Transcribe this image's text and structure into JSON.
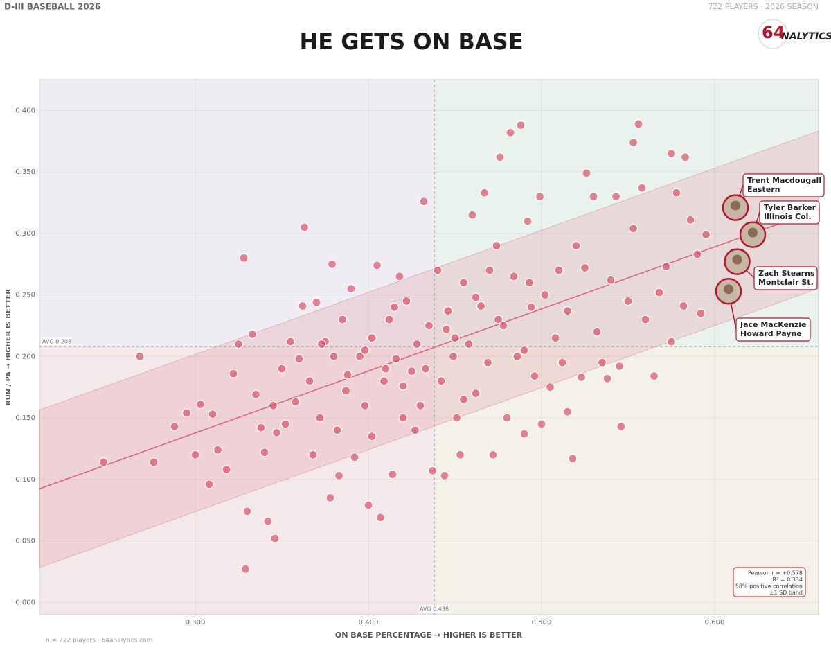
{
  "header": {
    "left": "D-III BASEBALL 2026",
    "right": "722 PLAYERS · 2026 SEASON",
    "logo_number": "64",
    "logo_text": "NALYTICS"
  },
  "chart_data": {
    "type": "scatter",
    "title": "HE GETS ON BASE",
    "x_label": "ON BASE PERCENTAGE  →  HIGHER IS BETTER",
    "y_label": "RUN / PA  →  HIGHER IS BETTER",
    "color": "#d8455e",
    "xlim": [
      0.21,
      0.66
    ],
    "ylim": [
      -0.01,
      0.425
    ],
    "xticks": [
      {
        "value": 0.3,
        "label": "0.300"
      },
      {
        "value": 0.4,
        "label": "0.400"
      },
      {
        "value": 0.5,
        "label": "0.500"
      },
      {
        "value": 0.6,
        "label": "0.600"
      }
    ],
    "yticks": [
      {
        "value": 0,
        "label": "0.000"
      },
      {
        "value": 0.05,
        "label": "0.050"
      },
      {
        "value": 0.1,
        "label": "0.100"
      },
      {
        "value": 0.15,
        "label": "0.150"
      },
      {
        "value": 0.2,
        "label": "0.200"
      },
      {
        "value": 0.25,
        "label": "0.250"
      },
      {
        "value": 0.3,
        "label": "0.300"
      },
      {
        "value": 0.35,
        "label": "0.350"
      },
      {
        "value": 0.4,
        "label": "0.400"
      }
    ],
    "grid": true,
    "avg_x": {
      "value": 0.438,
      "label": "AVG 0.438"
    },
    "avg_y": {
      "value": 0.208,
      "label": "AVG 0.208"
    },
    "x": [
      0.247,
      0.268,
      0.276,
      0.288,
      0.295,
      0.3,
      0.303,
      0.308,
      0.31,
      0.313,
      0.318,
      0.322,
      0.325,
      0.328,
      0.329,
      0.33,
      0.333,
      0.335,
      0.34,
      0.342,
      0.346,
      0.347,
      0.35,
      0.352,
      0.355,
      0.358,
      0.362,
      0.363,
      0.366,
      0.368,
      0.37,
      0.372,
      0.375,
      0.378,
      0.379,
      0.38,
      0.382,
      0.385,
      0.387,
      0.39,
      0.392,
      0.395,
      0.398,
      0.4,
      0.402,
      0.405,
      0.407,
      0.409,
      0.412,
      0.414,
      0.416,
      0.418,
      0.42,
      0.422,
      0.425,
      0.428,
      0.43,
      0.432,
      0.435,
      0.437,
      0.44,
      0.442,
      0.444,
      0.446,
      0.449,
      0.451,
      0.453,
      0.455,
      0.458,
      0.46,
      0.462,
      0.465,
      0.467,
      0.469,
      0.472,
      0.474,
      0.476,
      0.478,
      0.48,
      0.482,
      0.484,
      0.486,
      0.488,
      0.49,
      0.492,
      0.494,
      0.496,
      0.499,
      0.5,
      0.502,
      0.505,
      0.508,
      0.51,
      0.512,
      0.515,
      0.518,
      0.52,
      0.523,
      0.526,
      0.53,
      0.532,
      0.535,
      0.538,
      0.54,
      0.543,
      0.546,
      0.55,
      0.553,
      0.556,
      0.558,
      0.56,
      0.565,
      0.568,
      0.572,
      0.575,
      0.578,
      0.582,
      0.583,
      0.586,
      0.59,
      0.592,
      0.595,
      0.575,
      0.553,
      0.545,
      0.525,
      0.47,
      0.445,
      0.415,
      0.398,
      0.388,
      0.373,
      0.36,
      0.345,
      0.338,
      0.383,
      0.402,
      0.427,
      0.455,
      0.462,
      0.433,
      0.41,
      0.42,
      0.45,
      0.475,
      0.493,
      0.515,
      0.49
    ],
    "values": [
      0.114,
      0.2,
      0.114,
      0.143,
      0.154,
      0.12,
      0.161,
      0.096,
      0.153,
      0.124,
      0.108,
      0.186,
      0.21,
      0.28,
      0.027,
      0.074,
      0.218,
      0.169,
      0.122,
      0.066,
      0.052,
      0.138,
      0.19,
      0.145,
      0.212,
      0.163,
      0.241,
      0.305,
      0.18,
      0.12,
      0.244,
      0.15,
      0.212,
      0.085,
      0.275,
      0.2,
      0.14,
      0.23,
      0.172,
      0.255,
      0.118,
      0.2,
      0.16,
      0.079,
      0.215,
      0.274,
      0.069,
      0.18,
      0.23,
      0.104,
      0.198,
      0.265,
      0.15,
      0.245,
      0.188,
      0.21,
      0.16,
      0.326,
      0.225,
      0.107,
      0.27,
      0.18,
      0.103,
      0.237,
      0.2,
      0.15,
      0.12,
      0.26,
      0.21,
      0.315,
      0.17,
      0.241,
      0.333,
      0.195,
      0.12,
      0.29,
      0.362,
      0.225,
      0.15,
      0.382,
      0.265,
      0.2,
      0.388,
      0.137,
      0.31,
      0.24,
      0.184,
      0.33,
      0.145,
      0.25,
      0.175,
      0.215,
      0.27,
      0.195,
      0.155,
      0.117,
      0.29,
      0.183,
      0.349,
      0.33,
      0.22,
      0.195,
      0.182,
      0.262,
      0.33,
      0.143,
      0.245,
      0.374,
      0.389,
      0.337,
      0.23,
      0.184,
      0.252,
      0.273,
      0.365,
      0.333,
      0.241,
      0.362,
      0.311,
      0.283,
      0.235,
      0.299,
      0.212,
      0.304,
      0.192,
      0.272,
      0.27,
      0.222,
      0.24,
      0.205,
      0.185,
      0.21,
      0.198,
      0.16,
      0.142,
      0.103,
      0.135,
      0.14,
      0.165,
      0.248,
      0.19,
      0.19,
      0.176,
      0.215,
      0.23,
      0.26,
      0.237,
      0.205
    ],
    "highlights": [
      {
        "name": "Trent Macdougall",
        "team": "Eastern",
        "x": 0.612,
        "y": 0.321
      },
      {
        "name": "Tyler Barker",
        "team": "Illinois Col.",
        "x": 0.622,
        "y": 0.299
      },
      {
        "name": "Zach Stearns",
        "team": "Montclair St.",
        "x": 0.613,
        "y": 0.277
      },
      {
        "name": "Jace MacKenzie",
        "team": "Howard Payne",
        "x": 0.608,
        "y": 0.253
      }
    ],
    "stats": [
      "Pearson r = +0.578",
      "R² = 0.334",
      "58% positive correlation",
      "±1 SD band"
    ],
    "footer": "n = 722 players  ·  64analytics.com"
  }
}
